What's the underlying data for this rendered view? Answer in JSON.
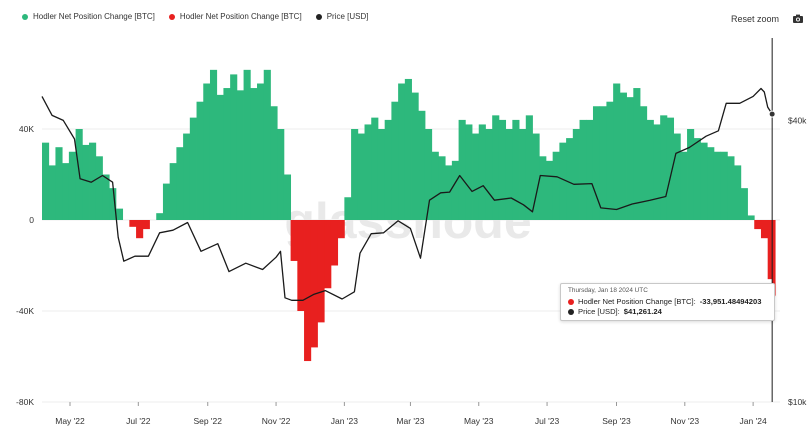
{
  "legend": {
    "items": [
      {
        "label": "Hodler Net Position Change [BTC]",
        "color": "#2db87c"
      },
      {
        "label": "Hodler Net Position Change [BTC]",
        "color": "#e8201f"
      },
      {
        "label": "Price [USD]",
        "color": "#222222"
      }
    ]
  },
  "toolbar": {
    "reset_label": "Reset zoom",
    "camera_icon": "camera-icon"
  },
  "watermark": "glassnode",
  "tooltip": {
    "title": "Thursday, Jan 18 2024 UTC",
    "series1_label": "Hodler Net Position Change [BTC]:",
    "series1_value": "-33,951.48494203",
    "series1_color": "#e8201f",
    "series2_label": "Price [USD]:",
    "series2_value": "$41,261.24",
    "series2_color": "#222222"
  },
  "chart_data": {
    "type": "area",
    "x_tick_labels": [
      "May '22",
      "Jul '22",
      "Sep '22",
      "Nov '22",
      "Jan '23",
      "Mar '23",
      "May '23",
      "Jul '23",
      "Sep '23",
      "Nov '23",
      "Jan '24"
    ],
    "x_range": [
      "2022-04-06",
      "2024-01-25"
    ],
    "left_axis": {
      "label": "",
      "ticks": [
        "40K",
        "0",
        "-40K",
        "-80K"
      ],
      "tick_values": [
        40000,
        0,
        -40000,
        -80000
      ],
      "range": [
        -80000,
        80000
      ]
    },
    "right_axis": {
      "label": "",
      "scale": "log",
      "ticks": [
        "$40k",
        "$10k"
      ],
      "tick_values": [
        40000,
        10000
      ],
      "range": [
        10000,
        60000
      ]
    },
    "positive_color": "#2db87c",
    "negative_color": "#e8201f",
    "price_color": "#1a1a1a",
    "series": [
      {
        "name": "Hodler Net Position Change [BTC]",
        "x": [
          "2022-04-06",
          "2022-04-12",
          "2022-04-18",
          "2022-04-24",
          "2022-04-30",
          "2022-05-06",
          "2022-05-12",
          "2022-05-18",
          "2022-05-24",
          "2022-05-30",
          "2022-06-05",
          "2022-06-11",
          "2022-06-17",
          "2022-06-23",
          "2022-06-29",
          "2022-07-05",
          "2022-07-11",
          "2022-07-17",
          "2022-07-23",
          "2022-07-29",
          "2022-08-04",
          "2022-08-10",
          "2022-08-16",
          "2022-08-22",
          "2022-08-28",
          "2022-09-03",
          "2022-09-09",
          "2022-09-15",
          "2022-09-21",
          "2022-09-27",
          "2022-10-03",
          "2022-10-09",
          "2022-10-15",
          "2022-10-21",
          "2022-10-27",
          "2022-11-02",
          "2022-11-08",
          "2022-11-14",
          "2022-11-20",
          "2022-11-26",
          "2022-12-02",
          "2022-12-08",
          "2022-12-14",
          "2022-12-20",
          "2022-12-26",
          "2023-01-01",
          "2023-01-07",
          "2023-01-13",
          "2023-01-19",
          "2023-01-25",
          "2023-01-31",
          "2023-02-06",
          "2023-02-12",
          "2023-02-18",
          "2023-02-24",
          "2023-03-02",
          "2023-03-08",
          "2023-03-14",
          "2023-03-20",
          "2023-03-26",
          "2023-04-01",
          "2023-04-07",
          "2023-04-13",
          "2023-04-19",
          "2023-04-25",
          "2023-05-01",
          "2023-05-07",
          "2023-05-13",
          "2023-05-19",
          "2023-05-25",
          "2023-05-31",
          "2023-06-06",
          "2023-06-12",
          "2023-06-18",
          "2023-06-24",
          "2023-06-30",
          "2023-07-06",
          "2023-07-12",
          "2023-07-18",
          "2023-07-24",
          "2023-07-30",
          "2023-08-05",
          "2023-08-11",
          "2023-08-17",
          "2023-08-23",
          "2023-08-29",
          "2023-09-04",
          "2023-09-10",
          "2023-09-16",
          "2023-09-22",
          "2023-09-28",
          "2023-10-04",
          "2023-10-10",
          "2023-10-16",
          "2023-10-22",
          "2023-10-28",
          "2023-11-03",
          "2023-11-09",
          "2023-11-15",
          "2023-11-21",
          "2023-11-27",
          "2023-12-03",
          "2023-12-09",
          "2023-12-15",
          "2023-12-21",
          "2023-12-27",
          "2024-01-02",
          "2024-01-08",
          "2024-01-14",
          "2024-01-18"
        ],
        "values": [
          34000,
          24000,
          32000,
          25000,
          30000,
          40000,
          33000,
          34000,
          28000,
          20000,
          14000,
          5000,
          0,
          -3000,
          -8000,
          -4000,
          0,
          3000,
          16000,
          25000,
          32000,
          38000,
          45000,
          52000,
          60000,
          66000,
          55000,
          58000,
          64000,
          57000,
          66000,
          58000,
          60000,
          66000,
          50000,
          40000,
          20000,
          -18000,
          -40000,
          -62000,
          -56000,
          -45000,
          -30000,
          -20000,
          -8000,
          10000,
          40000,
          38000,
          42000,
          45000,
          40000,
          44000,
          52000,
          60000,
          62000,
          56000,
          48000,
          40000,
          30000,
          28000,
          24000,
          26000,
          44000,
          42000,
          38000,
          42000,
          40000,
          46000,
          44000,
          40000,
          44000,
          40000,
          46000,
          38000,
          28000,
          26000,
          30000,
          34000,
          36000,
          40000,
          44000,
          44000,
          50000,
          50000,
          52000,
          60000,
          56000,
          54000,
          58000,
          50000,
          44000,
          42000,
          46000,
          45000,
          38000,
          30000,
          40000,
          36000,
          34000,
          32000,
          30000,
          30000,
          28000,
          24000,
          14000,
          2000,
          -4000,
          -8000,
          -26000,
          -33951
        ]
      },
      {
        "name": "Price [USD]",
        "x": [
          "2022-04-06",
          "2022-04-15",
          "2022-04-25",
          "2022-05-05",
          "2022-05-10",
          "2022-05-20",
          "2022-05-30",
          "2022-06-08",
          "2022-06-13",
          "2022-06-18",
          "2022-06-28",
          "2022-07-10",
          "2022-07-20",
          "2022-08-01",
          "2022-08-14",
          "2022-08-26",
          "2022-09-10",
          "2022-09-20",
          "2022-10-05",
          "2022-10-20",
          "2022-11-01",
          "2022-11-05",
          "2022-11-09",
          "2022-11-15",
          "2022-11-25",
          "2022-12-05",
          "2022-12-15",
          "2022-12-30",
          "2023-01-10",
          "2023-01-15",
          "2023-01-25",
          "2023-02-05",
          "2023-02-18",
          "2023-03-01",
          "2023-03-10",
          "2023-03-18",
          "2023-03-28",
          "2023-04-05",
          "2023-04-14",
          "2023-04-25",
          "2023-05-05",
          "2023-05-15",
          "2023-05-30",
          "2023-06-10",
          "2023-06-18",
          "2023-06-25",
          "2023-07-10",
          "2023-07-25",
          "2023-08-10",
          "2023-08-18",
          "2023-09-01",
          "2023-09-15",
          "2023-10-01",
          "2023-10-15",
          "2023-10-24",
          "2023-11-05",
          "2023-11-20",
          "2023-12-01",
          "2023-12-08",
          "2023-12-20",
          "2024-01-01",
          "2024-01-08",
          "2024-01-11",
          "2024-01-14",
          "2024-01-18"
        ],
        "values": [
          45000,
          41000,
          40000,
          36500,
          30000,
          29500,
          30500,
          29500,
          22500,
          20000,
          20500,
          20500,
          23000,
          23300,
          24200,
          21000,
          21800,
          19000,
          19800,
          19200,
          20400,
          21000,
          16700,
          16500,
          16500,
          17000,
          17300,
          16600,
          17200,
          20800,
          22900,
          23000,
          24400,
          23500,
          20300,
          27000,
          28000,
          28100,
          30500,
          28200,
          29000,
          27000,
          27300,
          26400,
          25500,
          30500,
          30300,
          29200,
          29300,
          26000,
          25800,
          26500,
          27000,
          27500,
          34000,
          35000,
          37000,
          38000,
          43500,
          43500,
          45000,
          46800,
          46000,
          42700,
          41261
        ]
      }
    ]
  }
}
